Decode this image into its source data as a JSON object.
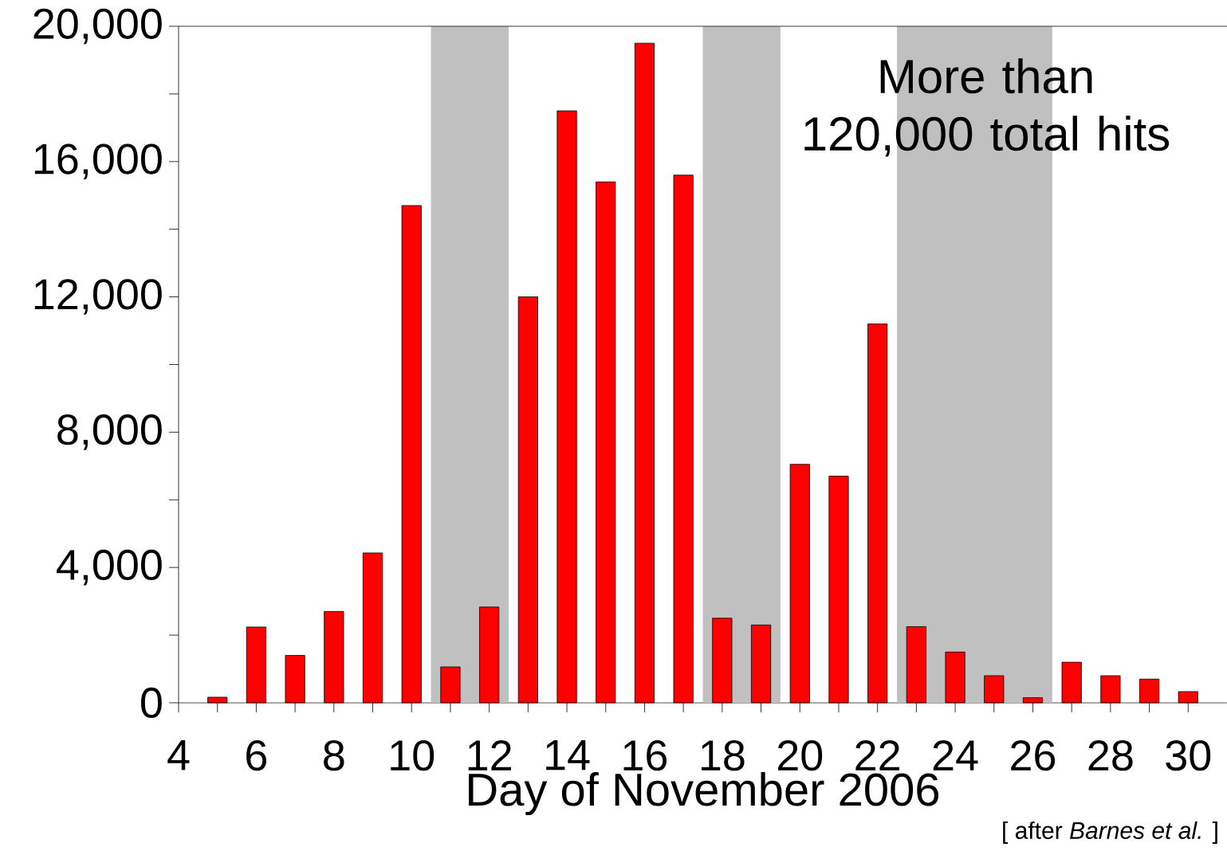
{
  "chart_data": {
    "type": "bar",
    "xlabel": "Day of November 2006",
    "x": [
      5,
      6,
      7,
      8,
      9,
      10,
      11,
      12,
      13,
      14,
      15,
      16,
      17,
      18,
      19,
      20,
      21,
      22,
      23,
      24,
      25,
      26,
      27,
      28,
      29,
      30
    ],
    "values": [
      165,
      2240,
      1400,
      2700,
      4430,
      14700,
      1060,
      2830,
      12000,
      17500,
      15400,
      19500,
      15600,
      2500,
      2300,
      7050,
      6700,
      11200,
      2250,
      1500,
      800,
      150,
      1200,
      800,
      700,
      330
    ],
    "color": "#ff0000",
    "xlim": [
      4,
      31
    ],
    "xticks": [
      4,
      {
        "value": 5,
        "label": null
      },
      6,
      {
        "value": 7,
        "label": null
      },
      8,
      {
        "value": 9,
        "label": null
      },
      10,
      {
        "value": 11,
        "label": null
      },
      12,
      {
        "value": 13,
        "label": null
      },
      14,
      {
        "value": 15,
        "label": null
      },
      16,
      {
        "value": 17,
        "label": null
      },
      18,
      {
        "value": 19,
        "label": null
      },
      20,
      {
        "value": 21,
        "label": null
      },
      22,
      {
        "value": 23,
        "label": null
      },
      24,
      {
        "value": 25,
        "label": null
      },
      26,
      {
        "value": 27,
        "label": null
      },
      28,
      {
        "value": 29,
        "label": null
      },
      30
    ],
    "ylim": [
      0,
      20000
    ],
    "yticks": [
      {
        "value": 0,
        "label": "0"
      },
      {
        "value": 2000,
        "label": null
      },
      {
        "value": 4000,
        "label": "4,000"
      },
      {
        "value": 6000,
        "label": null
      },
      {
        "value": 8000,
        "label": "8,000"
      },
      {
        "value": 10000,
        "label": null
      },
      {
        "value": 12000,
        "label": "12,000"
      },
      {
        "value": 14000,
        "label": null
      },
      {
        "value": 16000,
        "label": "16,000"
      },
      {
        "value": 18000,
        "label": null
      },
      {
        "value": 20000,
        "label": "20,000"
      }
    ],
    "bands": [
      {
        "axis": "x",
        "from": 10.5,
        "to": 12.5,
        "color": "#c0c0c0"
      },
      {
        "axis": "x",
        "from": 17.5,
        "to": 19.5,
        "color": "#c0c0c0"
      },
      {
        "axis": "x",
        "from": 22.5,
        "to": 26.5,
        "color": "#c0c0c0"
      }
    ],
    "annotations": [
      "More than 120,000 total hits",
      "[ after *Barnes et al.* ]"
    ]
  }
}
